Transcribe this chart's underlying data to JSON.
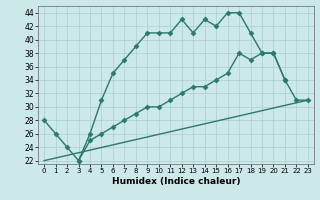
{
  "title": "",
  "xlabel": "Humidex (Indice chaleur)",
  "bg_color": "#cce8e8",
  "grid_color": "#aacfcf",
  "line_color": "#2a7a6a",
  "xlim": [
    -0.5,
    23.5
  ],
  "ylim": [
    21.5,
    45
  ],
  "xticks": [
    0,
    1,
    2,
    3,
    4,
    5,
    6,
    7,
    8,
    9,
    10,
    11,
    12,
    13,
    14,
    15,
    16,
    17,
    18,
    19,
    20,
    21,
    22,
    23
  ],
  "yticks": [
    22,
    24,
    26,
    28,
    30,
    32,
    34,
    36,
    38,
    40,
    42,
    44
  ],
  "line1_x": [
    0,
    1,
    2,
    3,
    4,
    5,
    6,
    7,
    8,
    9,
    10,
    11,
    12,
    13,
    14,
    15,
    16,
    17,
    18,
    19,
    20,
    21
  ],
  "line1_y": [
    28,
    26,
    24,
    22,
    26,
    31,
    35,
    37,
    39,
    41,
    41,
    41,
    43,
    41,
    43,
    42,
    44,
    44,
    41,
    38,
    38,
    34
  ],
  "line2_x": [
    3,
    4,
    5,
    6,
    7,
    8,
    9,
    10,
    11,
    12,
    13,
    14,
    15,
    16,
    17,
    18,
    19,
    20,
    21,
    22,
    23
  ],
  "line2_y": [
    22,
    25,
    26,
    27,
    28,
    29,
    30,
    30,
    31,
    32,
    33,
    33,
    34,
    35,
    38,
    37,
    38,
    38,
    34,
    31,
    31
  ],
  "line3_x": [
    0,
    23
  ],
  "line3_y": [
    22,
    31
  ],
  "marker_style": "D",
  "marker_size": 2.5,
  "line_width": 1.0
}
